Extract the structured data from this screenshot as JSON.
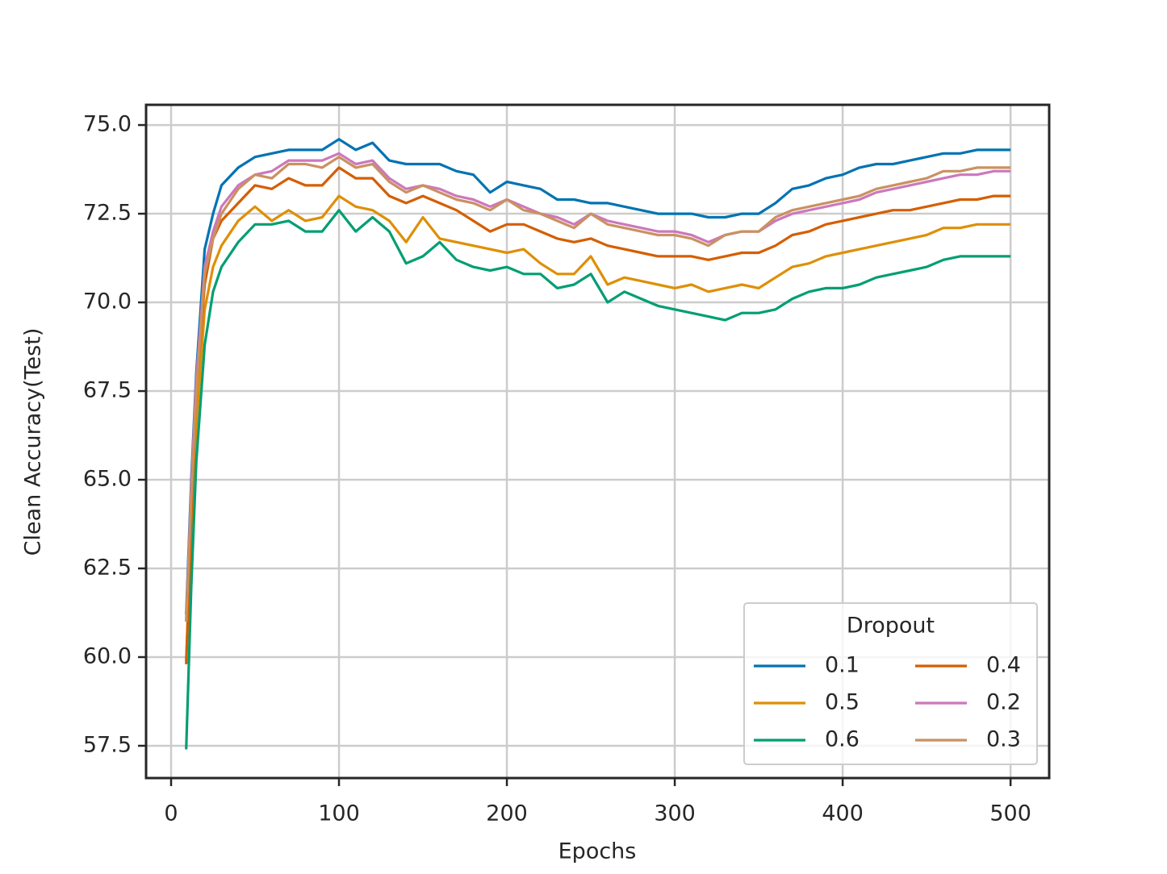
{
  "chart_data": {
    "type": "line",
    "xlabel": "Epochs",
    "ylabel": "Clean Accuracy(Test)",
    "x": [
      9,
      12,
      15,
      20,
      25,
      30,
      40,
      50,
      60,
      70,
      80,
      90,
      100,
      110,
      120,
      130,
      140,
      150,
      160,
      170,
      180,
      190,
      200,
      210,
      220,
      230,
      240,
      250,
      260,
      270,
      280,
      290,
      300,
      310,
      320,
      330,
      340,
      350,
      360,
      370,
      380,
      390,
      400,
      410,
      420,
      430,
      440,
      450,
      460,
      470,
      480,
      490,
      500
    ],
    "series": [
      {
        "name": "0.1",
        "color": "#0173b2",
        "values": [
          61.2,
          65,
          68,
          71.5,
          72.5,
          73.3,
          73.8,
          74.1,
          74.2,
          74.3,
          74.3,
          74.3,
          74.6,
          74.3,
          74.5,
          74.0,
          73.9,
          73.9,
          73.9,
          73.7,
          73.6,
          73.1,
          73.4,
          73.3,
          73.2,
          72.9,
          72.9,
          72.8,
          72.8,
          72.7,
          72.6,
          72.5,
          72.5,
          72.5,
          72.4,
          72.4,
          72.5,
          72.5,
          72.8,
          73.2,
          73.3,
          73.5,
          73.6,
          73.8,
          73.9,
          73.9,
          74.0,
          74.1,
          74.2,
          74.2,
          74.3,
          74.3,
          74.3
        ]
      },
      {
        "name": "0.5",
        "color": "#de8f05",
        "values": [
          59.9,
          63.5,
          66.5,
          69.8,
          71.0,
          71.6,
          72.3,
          72.7,
          72.3,
          72.6,
          72.3,
          72.4,
          73.0,
          72.7,
          72.6,
          72.3,
          71.7,
          72.4,
          71.8,
          71.7,
          71.6,
          71.5,
          71.4,
          71.5,
          71.1,
          70.8,
          70.8,
          71.3,
          70.5,
          70.7,
          70.6,
          70.5,
          70.4,
          70.5,
          70.3,
          70.4,
          70.5,
          70.4,
          70.7,
          71.0,
          71.1,
          71.3,
          71.4,
          71.5,
          71.6,
          71.7,
          71.8,
          71.9,
          72.1,
          72.1,
          72.2,
          72.2,
          72.2
        ]
      },
      {
        "name": "0.6",
        "color": "#029e73",
        "values": [
          57.4,
          62,
          65.5,
          68.8,
          70.3,
          71.0,
          71.7,
          72.2,
          72.2,
          72.3,
          72.0,
          72.0,
          72.6,
          72.0,
          72.4,
          72.0,
          71.1,
          71.3,
          71.7,
          71.2,
          71.0,
          70.9,
          71.0,
          70.8,
          70.8,
          70.4,
          70.5,
          70.8,
          70.0,
          70.3,
          70.1,
          69.9,
          69.8,
          69.7,
          69.6,
          69.5,
          69.7,
          69.7,
          69.8,
          70.1,
          70.3,
          70.4,
          70.4,
          70.5,
          70.7,
          70.8,
          70.9,
          71.0,
          71.2,
          71.3,
          71.3,
          71.3,
          71.3
        ]
      },
      {
        "name": "0.4",
        "color": "#d55e00",
        "values": [
          59.8,
          64,
          67.5,
          70.5,
          71.8,
          72.3,
          72.8,
          73.3,
          73.2,
          73.5,
          73.3,
          73.3,
          73.8,
          73.5,
          73.5,
          73.0,
          72.8,
          73.0,
          72.8,
          72.6,
          72.3,
          72.0,
          72.2,
          72.2,
          72.0,
          71.8,
          71.7,
          71.8,
          71.6,
          71.5,
          71.4,
          71.3,
          71.3,
          71.3,
          71.2,
          71.3,
          71.4,
          71.4,
          71.6,
          71.9,
          72.0,
          72.2,
          72.3,
          72.4,
          72.5,
          72.6,
          72.6,
          72.7,
          72.8,
          72.9,
          72.9,
          73.0,
          73.0
        ]
      },
      {
        "name": "0.2",
        "color": "#cc78bc",
        "values": [
          61,
          64.8,
          67.8,
          71.0,
          72.0,
          72.7,
          73.3,
          73.6,
          73.7,
          74.0,
          74.0,
          74.0,
          74.2,
          73.9,
          74.0,
          73.5,
          73.2,
          73.3,
          73.2,
          73.0,
          72.9,
          72.7,
          72.9,
          72.7,
          72.5,
          72.4,
          72.2,
          72.5,
          72.3,
          72.2,
          72.1,
          72.0,
          72.0,
          71.9,
          71.7,
          71.9,
          72.0,
          72.0,
          72.3,
          72.5,
          72.6,
          72.7,
          72.8,
          72.9,
          73.1,
          73.2,
          73.3,
          73.4,
          73.5,
          73.6,
          73.6,
          73.7,
          73.7
        ]
      },
      {
        "name": "0.3",
        "color": "#ca9161",
        "values": [
          61,
          64.5,
          67.5,
          70.8,
          71.8,
          72.5,
          73.2,
          73.6,
          73.5,
          73.9,
          73.9,
          73.8,
          74.1,
          73.8,
          73.9,
          73.4,
          73.1,
          73.3,
          73.1,
          72.9,
          72.8,
          72.6,
          72.9,
          72.6,
          72.5,
          72.3,
          72.1,
          72.5,
          72.2,
          72.1,
          72.0,
          71.9,
          71.9,
          71.8,
          71.6,
          71.9,
          72.0,
          72.0,
          72.4,
          72.6,
          72.7,
          72.8,
          72.9,
          73.0,
          73.2,
          73.3,
          73.4,
          73.5,
          73.7,
          73.7,
          73.8,
          73.8,
          73.8
        ]
      }
    ],
    "xlim": [
      -14.9,
      523
    ],
    "ylim": [
      56.59,
      75.57
    ],
    "xticks": [
      0,
      100,
      200,
      300,
      400,
      500
    ],
    "yticks": [
      57.5,
      {
        "value": 60,
        "label": "60.0"
      },
      62.5,
      {
        "value": 65,
        "label": "65.0"
      },
      67.5,
      {
        "value": 70,
        "label": "70.0"
      },
      72.5,
      {
        "value": 75,
        "label": "75.0"
      }
    ],
    "grid": true,
    "legend": {
      "title": "Dropout",
      "loc": "lower right",
      "ncol": 2
    }
  }
}
